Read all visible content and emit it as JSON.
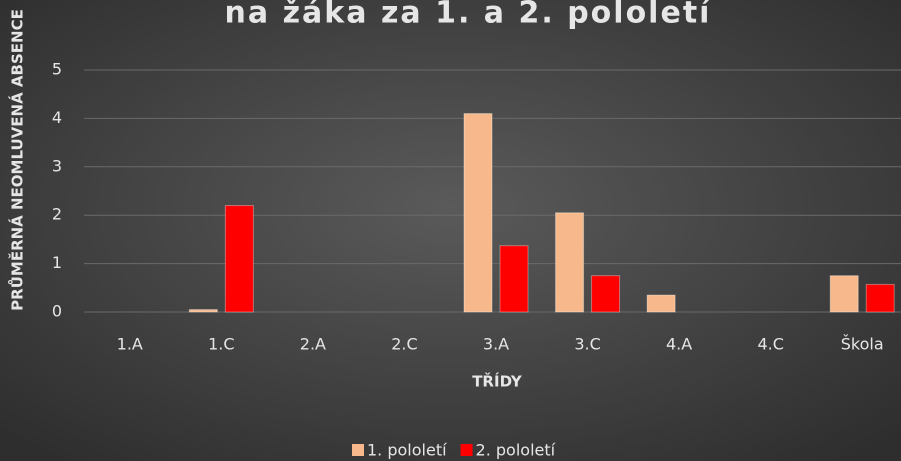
{
  "chart_data": {
    "type": "bar",
    "title": "na žáka za 1. a 2. pololetí",
    "y_label": "PRŮMĚRNÁ NEOMLUVENÁ ABSENCE",
    "x_label": "TŘÍDY",
    "categories": [
      "1.A",
      "1.C",
      "2.A",
      "2.C",
      "3.A",
      "3.C",
      "4.A",
      "4.C",
      "Škola"
    ],
    "series": [
      {
        "name": "1. pololetí",
        "color": "#f7b98b",
        "values": [
          0,
          0.05,
          0,
          0,
          4.1,
          2.05,
          0.35,
          0,
          0.75
        ]
      },
      {
        "name": "2. pololetí",
        "color": "#ff0000",
        "values": [
          0,
          2.2,
          0,
          0,
          1.37,
          0.75,
          0,
          0,
          0.57
        ]
      }
    ],
    "ylim": [
      0,
      5
    ],
    "yticks": [
      0,
      1,
      2,
      3,
      4,
      5
    ],
    "grid": true,
    "legend": "bottom"
  }
}
